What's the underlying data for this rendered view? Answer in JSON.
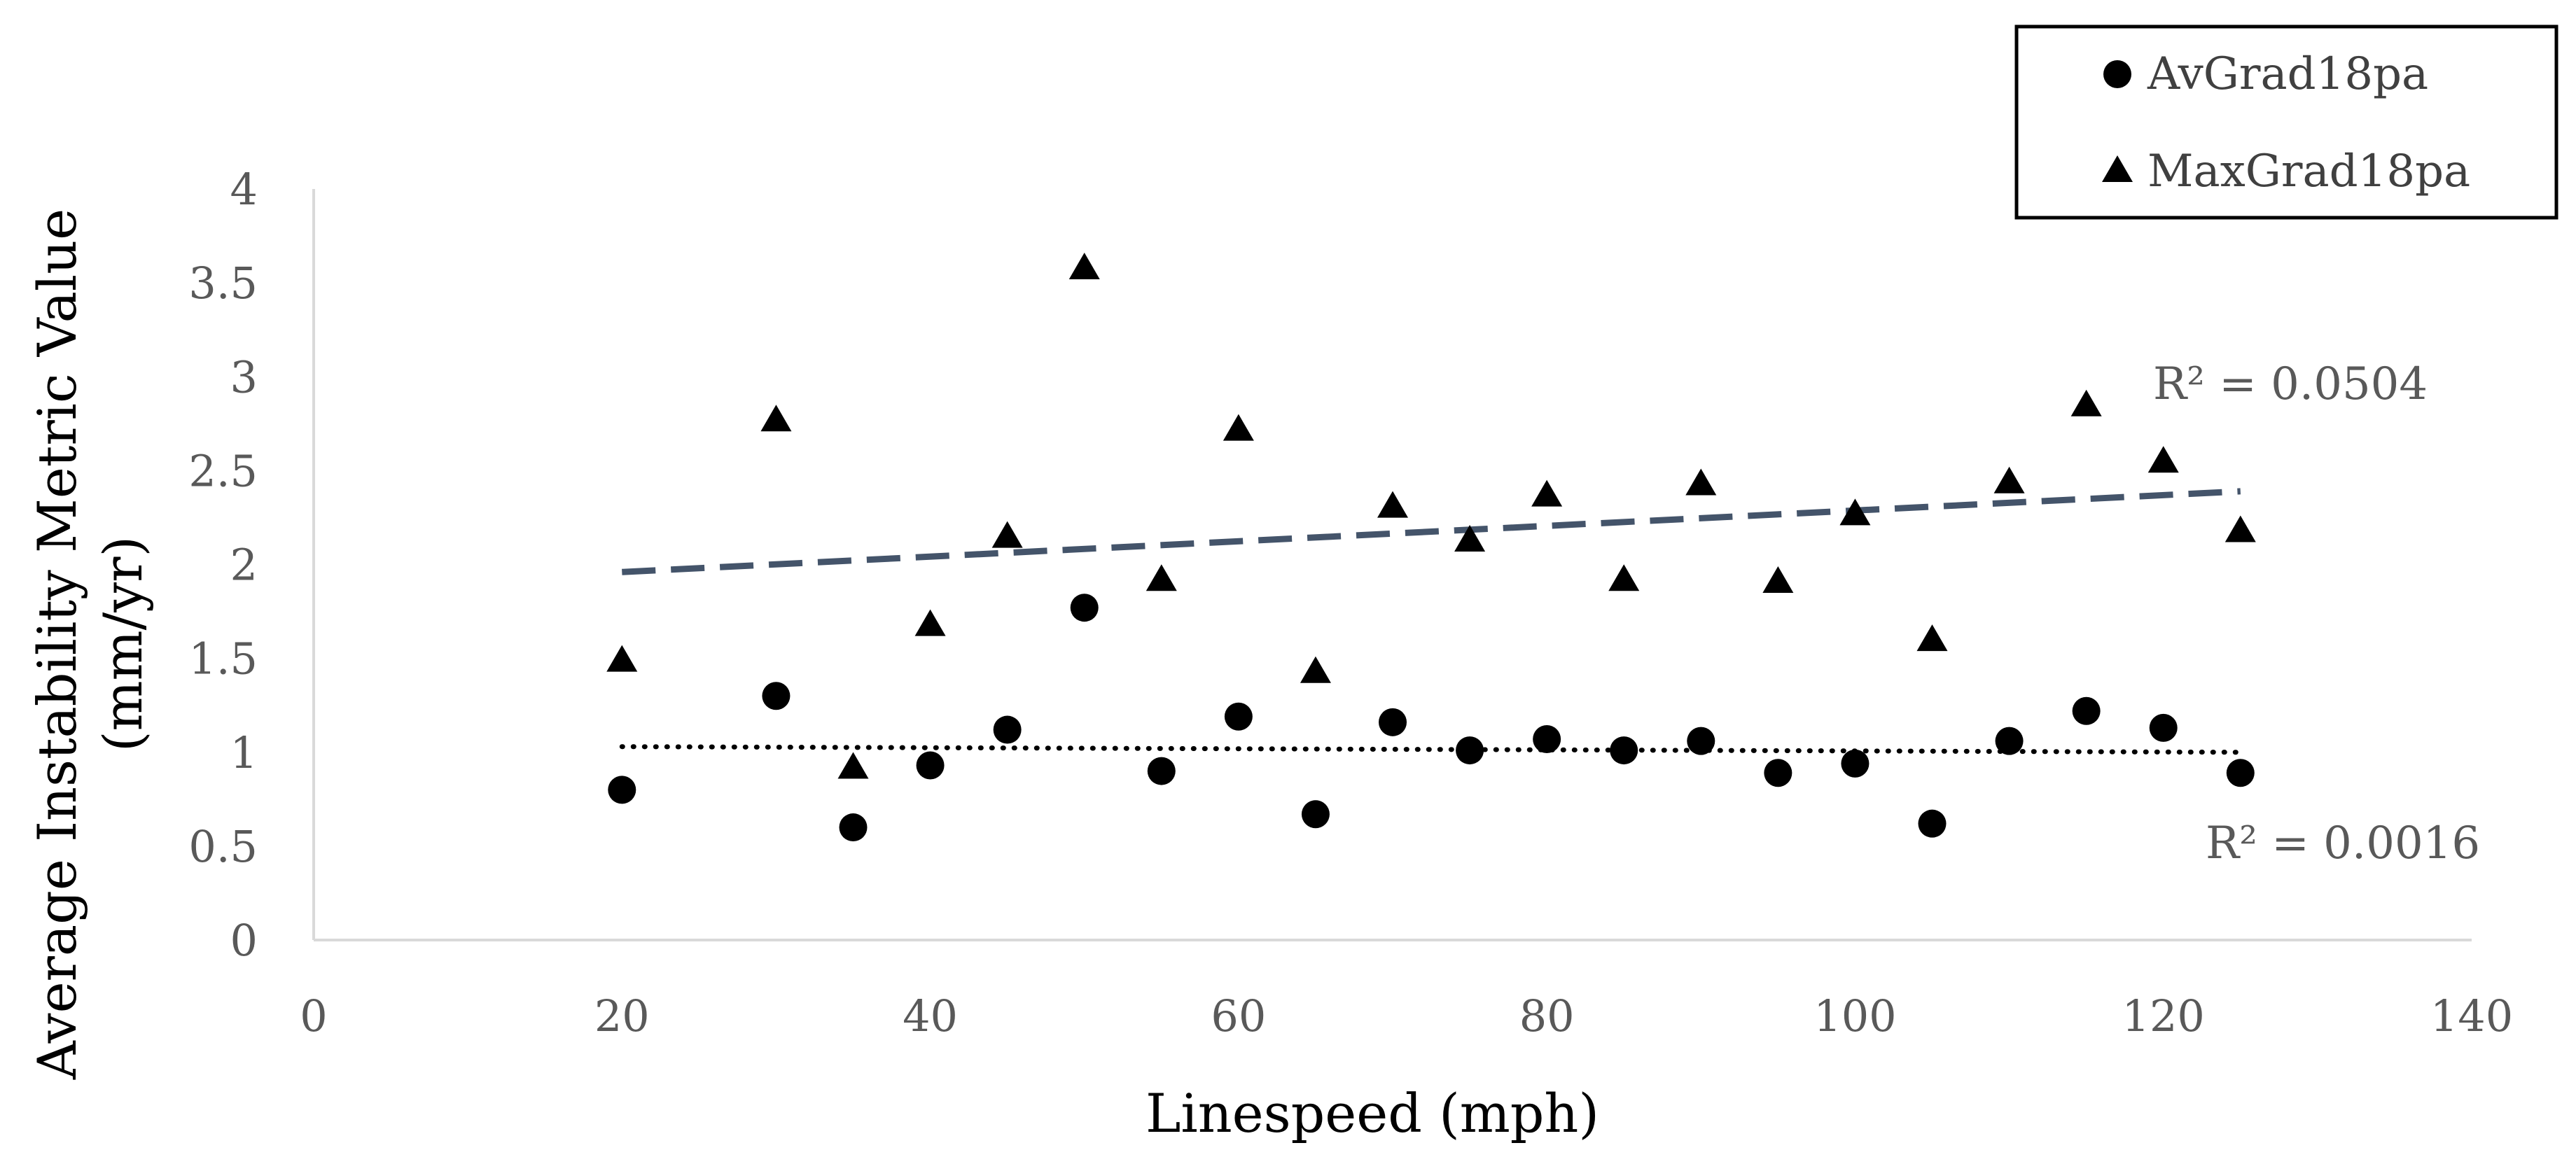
{
  "chart_data": {
    "type": "scatter",
    "title": "",
    "xlabel": "Linespeed (mph)",
    "ylabel": [
      "Average Instability Metric Value",
      "(mm/yr)"
    ],
    "xlim": [
      0,
      140
    ],
    "ylim": [
      0,
      4
    ],
    "x_ticks": [
      0,
      20,
      40,
      60,
      80,
      100,
      120,
      140
    ],
    "y_ticks": [
      0,
      0.5,
      1,
      1.5,
      2,
      2.5,
      3,
      3.5,
      4
    ],
    "grid": false,
    "legend_position": "top-right",
    "series": [
      {
        "name": "AvGrad18pa",
        "marker": "circle",
        "color": "#000000",
        "x": [
          20,
          30,
          35,
          40,
          45,
          50,
          55,
          60,
          65,
          70,
          75,
          80,
          85,
          90,
          95,
          100,
          105,
          110,
          115,
          120,
          125
        ],
        "y": [
          0.8,
          1.3,
          0.6,
          0.93,
          1.12,
          1.77,
          0.9,
          1.19,
          0.67,
          1.16,
          1.01,
          1.07,
          1.01,
          1.06,
          0.89,
          0.94,
          0.62,
          1.06,
          1.22,
          1.13,
          0.89
        ],
        "trendline": {
          "style": "dotted",
          "color": "#000000",
          "x_range": [
            20,
            125
          ],
          "y_range": [
            1.03,
            1.0
          ],
          "r2_label": "R² = 0.0016"
        }
      },
      {
        "name": "MaxGrad18pa",
        "marker": "triangle",
        "color": "#000000",
        "x": [
          20,
          30,
          35,
          40,
          45,
          50,
          55,
          60,
          65,
          70,
          75,
          80,
          85,
          90,
          95,
          100,
          105,
          110,
          115,
          120,
          125
        ],
        "y": [
          1.5,
          2.78,
          0.93,
          1.69,
          2.16,
          3.59,
          1.93,
          2.73,
          1.44,
          2.32,
          2.14,
          2.38,
          1.93,
          2.44,
          1.92,
          2.28,
          1.61,
          2.45,
          2.86,
          2.56,
          2.19
        ],
        "trendline": {
          "style": "dashed",
          "color": "#44546a",
          "x_range": [
            20,
            125
          ],
          "y_range": [
            1.96,
            2.39
          ],
          "r2_label": "R² = 0.0504"
        }
      }
    ]
  }
}
